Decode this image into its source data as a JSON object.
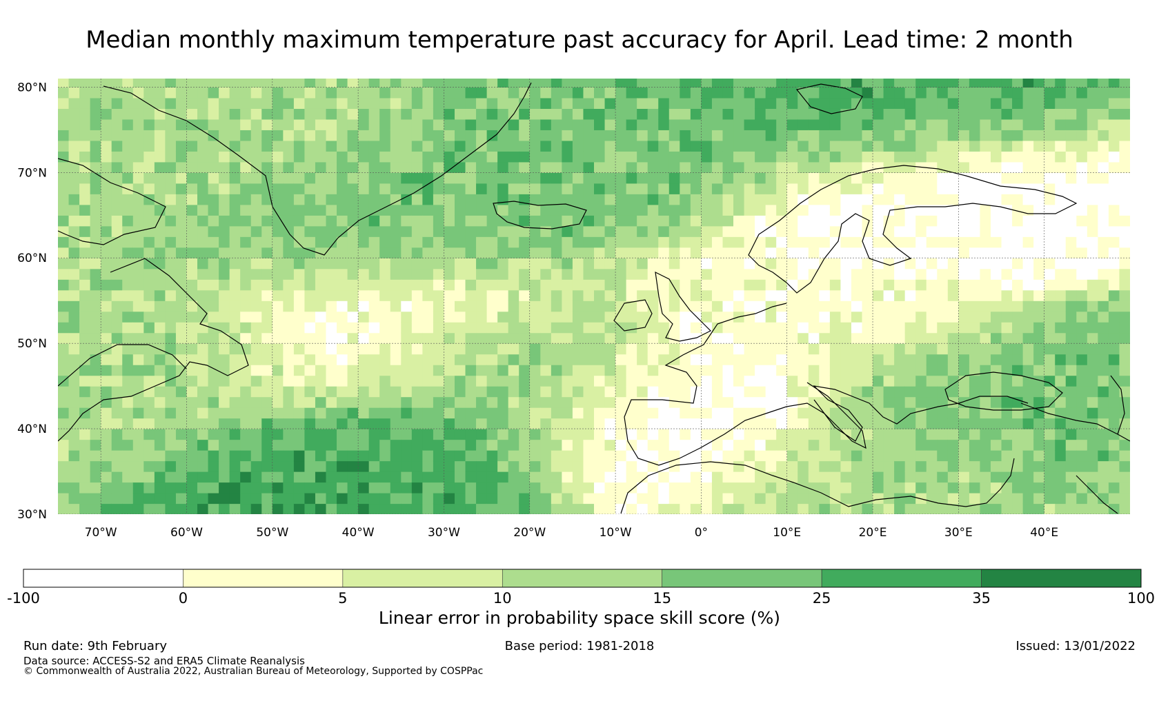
{
  "title": "Median monthly maximum temperature past accuracy for April. Lead time: 2 month",
  "map": {
    "lon_range": [
      -75,
      50
    ],
    "lat_range": [
      30,
      81
    ],
    "lat_ticks": [
      {
        "value": 80,
        "label": "80°N"
      },
      {
        "value": 70,
        "label": "70°N"
      },
      {
        "value": 60,
        "label": "60°N"
      },
      {
        "value": 50,
        "label": "50°N"
      },
      {
        "value": 40,
        "label": "40°N"
      },
      {
        "value": 30,
        "label": "30°N"
      }
    ],
    "lon_ticks": [
      {
        "value": -70,
        "label": "70°W"
      },
      {
        "value": -60,
        "label": "60°W"
      },
      {
        "value": -50,
        "label": "50°W"
      },
      {
        "value": -40,
        "label": "40°W"
      },
      {
        "value": -30,
        "label": "30°W"
      },
      {
        "value": -20,
        "label": "20°W"
      },
      {
        "value": -10,
        "label": "10°W"
      },
      {
        "value": 0,
        "label": "0°"
      },
      {
        "value": 10,
        "label": "10°E"
      },
      {
        "value": 20,
        "label": "20°E"
      },
      {
        "value": 30,
        "label": "30°E"
      },
      {
        "value": 40,
        "label": "40°E"
      }
    ]
  },
  "colorbar": {
    "label": "Linear error in probability space skill score (%)",
    "ticks": [
      "-100",
      "0",
      "5",
      "10",
      "15",
      "25",
      "35",
      "100"
    ],
    "colors": [
      "#ffffff",
      "#ffffcc",
      "#d9f0a3",
      "#addd8e",
      "#78c679",
      "#41ab5d",
      "#238443"
    ]
  },
  "footer": {
    "run_date": "Run date: 9th February",
    "base_period": "Base period: 1981-2018",
    "issued": "Issued: 13/01/2022",
    "data_source": "Data source: ACCESS-S2 and ERA5 Climate Reanalysis",
    "copyright": "© Commonwealth of Australia 2022, Australian Bureau of Meteorology, Supported by COSPPac"
  },
  "skill_regions": [
    {
      "name": "greenland-strong",
      "lon": -55,
      "lat": 72,
      "level": 3
    },
    {
      "name": "arctic-strong",
      "lon": 20,
      "lat": 77,
      "level": 5
    },
    {
      "name": "iceland-sea",
      "lon": -10,
      "lat": 72,
      "level": 4
    },
    {
      "name": "subpolar-gyre",
      "lon": -40,
      "lat": 62,
      "level": 4
    },
    {
      "name": "north-atlantic-weak",
      "lon": -38,
      "lat": 51,
      "level": 0
    },
    {
      "name": "subtropical-atlantic",
      "lon": -36,
      "lat": 35,
      "level": 5
    },
    {
      "name": "central-atlantic",
      "lon": -25,
      "lat": 45,
      "level": 4
    },
    {
      "name": "europe-weak",
      "lon": 15,
      "lat": 55,
      "level": 1
    },
    {
      "name": "iberia-weak",
      "lon": -5,
      "lat": 40,
      "level": 0
    },
    {
      "name": "black-sea",
      "lon": 35,
      "lat": 43,
      "level": 4
    },
    {
      "name": "north-africa",
      "lon": 20,
      "lat": 32,
      "level": 3
    },
    {
      "name": "labrador",
      "lon": -65,
      "lat": 48,
      "level": 3
    },
    {
      "name": "scandinavia-weak",
      "lon": 25,
      "lat": 66,
      "level": 0
    }
  ]
}
